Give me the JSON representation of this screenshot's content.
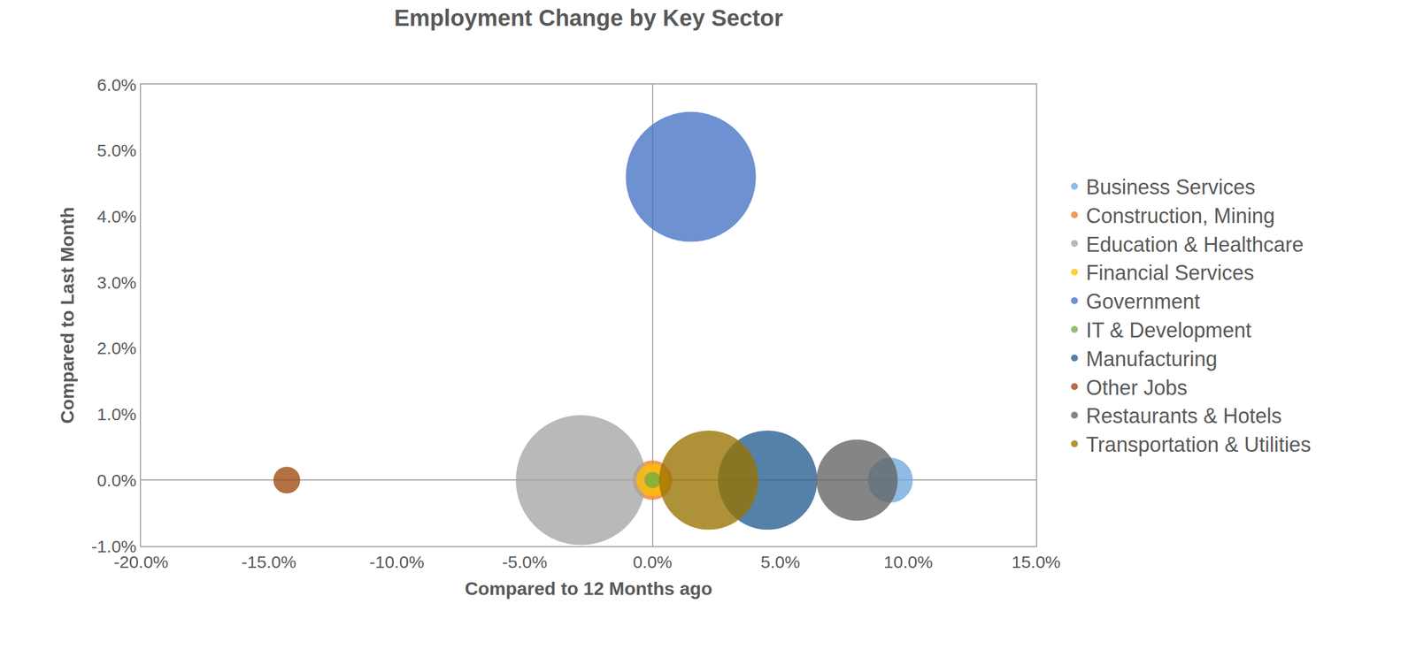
{
  "chart_data": {
    "type": "bubble",
    "title": "Employment Change by Key Sector",
    "x_label": "Compared to 12 Months ago",
    "y_label": "Compared to Last Month",
    "legend": "right",
    "grid": false,
    "xlim": [
      -20,
      15
    ],
    "xticks": [
      {
        "value": -20,
        "label": "-20.0%"
      },
      {
        "value": -15,
        "label": "-15.0%"
      },
      {
        "value": -10,
        "label": "-10.0%"
      },
      {
        "value": -5,
        "label": "-5.0%"
      },
      {
        "value": 0,
        "label": "0.0%"
      },
      {
        "value": 5,
        "label": "5.0%"
      },
      {
        "value": 10,
        "label": "10.0%"
      },
      {
        "value": 15,
        "label": "15.0%"
      }
    ],
    "ylim": [
      -1,
      6
    ],
    "yticks": [
      {
        "value": -1,
        "label": "-1.0%"
      },
      {
        "value": 0,
        "label": "0.0%"
      },
      {
        "value": 1,
        "label": "1.0%"
      },
      {
        "value": 2,
        "label": "2.0%"
      },
      {
        "value": 3,
        "label": "3.0%"
      },
      {
        "value": 4,
        "label": "4.0%"
      },
      {
        "value": 5,
        "label": "5.0%"
      },
      {
        "value": 6,
        "label": "6.0%"
      }
    ],
    "series": [
      {
        "name": "Business Services",
        "color": "#6FA8DC",
        "x": [
          9.3
        ],
        "y": [
          0
        ],
        "size": [
          62
        ]
      },
      {
        "name": "Construction, Mining",
        "color": "#ED7D31",
        "x": [
          0
        ],
        "y": [
          0
        ],
        "size": [
          48
        ]
      },
      {
        "name": "Education & Healthcare",
        "color": "#A5A5A5",
        "x": [
          -2.8
        ],
        "y": [
          0
        ],
        "size": [
          518
        ]
      },
      {
        "name": "Financial Services",
        "color": "#FFC000",
        "x": [
          0
        ],
        "y": [
          0
        ],
        "size": [
          32
        ]
      },
      {
        "name": "Government",
        "color": "#4472C4",
        "x": [
          1.5
        ],
        "y": [
          4.6
        ],
        "size": [
          518
        ]
      },
      {
        "name": "IT & Development",
        "color": "#70AD47",
        "x": [
          0
        ],
        "y": [
          0
        ],
        "size": [
          8
        ]
      },
      {
        "name": "Manufacturing",
        "color": "#255E91",
        "x": [
          4.5
        ],
        "y": [
          0
        ],
        "size": [
          302
        ]
      },
      {
        "name": "Other Jobs",
        "color": "#9E480E",
        "x": [
          -14.3
        ],
        "y": [
          0
        ],
        "size": [
          22
        ]
      },
      {
        "name": "Restaurants & Hotels",
        "color": "#636363",
        "x": [
          8.0
        ],
        "y": [
          0
        ],
        "size": [
          202
        ]
      },
      {
        "name": "Transportation & Utilities",
        "color": "#997300",
        "x": [
          2.2
        ],
        "y": [
          0
        ],
        "size": [
          302
        ]
      }
    ]
  }
}
